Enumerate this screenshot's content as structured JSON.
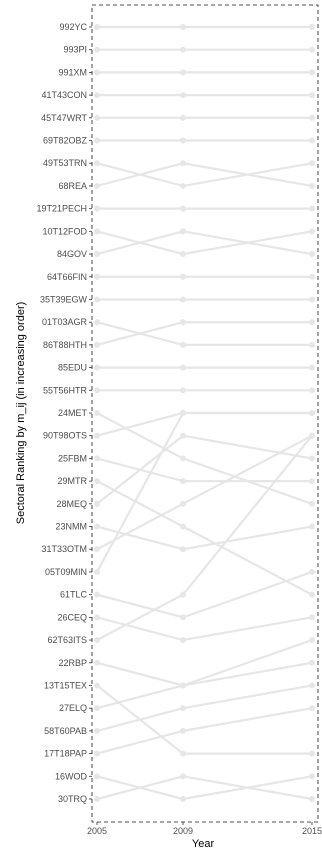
{
  "chart_data": {
    "type": "line",
    "title": "",
    "xlabel": "Year",
    "ylabel": "Sectoral Ranking by m_ij (in increasing order)",
    "x": [
      2005,
      2009,
      2015
    ],
    "x_tick_labels": [
      "2005",
      "2009",
      "2015"
    ],
    "y_tick_labels": [
      "992YC",
      "993PI",
      "991XM",
      "41T43CON",
      "45T47WRT",
      "69T82OBZ",
      "49T53TRN",
      "68REA",
      "19T21PECH",
      "10T12FOD",
      "84GOV",
      "64T66FIN",
      "35T39EGW",
      "01T03AGR",
      "86T88HTH",
      "85EDU",
      "55T56HTR",
      "24MET",
      "90T98OTS",
      "25FBM",
      "29MTR",
      "28MEQ",
      "23NMM",
      "31T33OTM",
      "05T09MIN",
      "61TLC",
      "26CEQ",
      "62T63ITS",
      "22RBP",
      "13T15TEX",
      "27ELQ",
      "58T60PAB",
      "17T18PAP",
      "16WOD",
      "30TRQ"
    ],
    "ylim": [
      1,
      35
    ],
    "series": [
      {
        "values": [
          1,
          1,
          1
        ]
      },
      {
        "values": [
          2,
          2,
          2
        ]
      },
      {
        "values": [
          3,
          3,
          3
        ]
      },
      {
        "values": [
          4,
          4,
          4
        ]
      },
      {
        "values": [
          5,
          5,
          5
        ]
      },
      {
        "values": [
          6,
          6,
          6
        ]
      },
      {
        "values": [
          7,
          8,
          7
        ]
      },
      {
        "values": [
          8,
          7,
          8
        ]
      },
      {
        "values": [
          9,
          9,
          9
        ]
      },
      {
        "values": [
          10,
          11,
          10
        ]
      },
      {
        "values": [
          11,
          10,
          11
        ]
      },
      {
        "values": [
          12,
          12,
          12
        ]
      },
      {
        "values": [
          13,
          13,
          13
        ]
      },
      {
        "values": [
          14,
          15,
          15
        ]
      },
      {
        "values": [
          15,
          14,
          14
        ]
      },
      {
        "values": [
          16,
          16,
          16
        ]
      },
      {
        "values": [
          17,
          17,
          17
        ]
      },
      {
        "values": [
          18,
          20,
          22
        ]
      },
      {
        "values": [
          19,
          18,
          18
        ]
      },
      {
        "values": [
          20,
          21,
          21
        ]
      },
      {
        "values": [
          21,
          23,
          26
        ]
      },
      {
        "values": [
          22,
          19,
          20
        ]
      },
      {
        "values": [
          23,
          24,
          23
        ]
      },
      {
        "values": [
          24,
          22,
          19
        ]
      },
      {
        "values": [
          25,
          18,
          18
        ]
      },
      {
        "values": [
          26,
          27,
          25
        ]
      },
      {
        "values": [
          27,
          28,
          27
        ]
      },
      {
        "values": [
          28,
          26,
          19
        ]
      },
      {
        "values": [
          29,
          30,
          29
        ]
      },
      {
        "values": [
          30,
          33,
          33
        ]
      },
      {
        "values": [
          31,
          30,
          28
        ]
      },
      {
        "values": [
          32,
          31,
          30
        ]
      },
      {
        "values": [
          33,
          32,
          31
        ]
      },
      {
        "values": [
          34,
          35,
          34
        ]
      },
      {
        "values": [
          35,
          34,
          35
        ]
      }
    ],
    "line_color": "#e6e6e6",
    "point_color": "#e6e6e6",
    "panel_border": "dashed",
    "grid": false,
    "legend": "none"
  }
}
